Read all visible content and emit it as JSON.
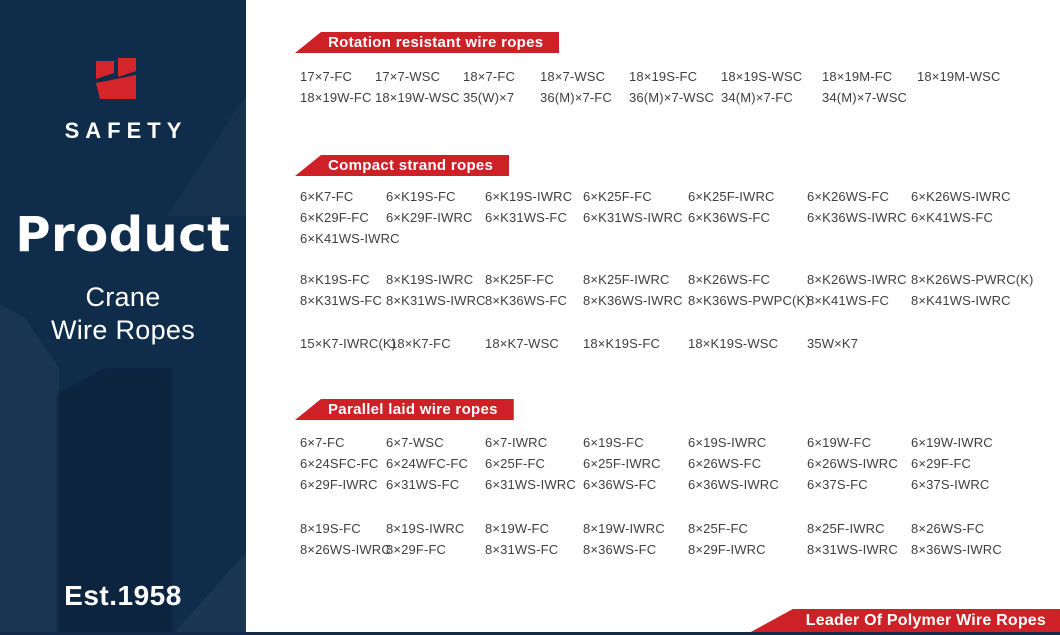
{
  "sidebar": {
    "brand": "SAFETY",
    "title": "Product",
    "subtitle_line1": "Crane",
    "subtitle_line2": "Wire Ropes",
    "established": "Est.1958",
    "logo": "safety-s-blocks-logo"
  },
  "colors": {
    "navy": "#0f2c4a",
    "red": "#ce2127",
    "code_text": "#3e3e3e"
  },
  "sections": [
    {
      "title": "Rotation resistant wire ropes",
      "blocks": [
        {
          "rows": [
            [
              "17×7-FC",
              "17×7-WSC",
              "18×7-FC",
              "18×7-WSC",
              "18×19S-FC",
              "18×19S-WSC",
              "18×19M-FC",
              "18×19M-WSC"
            ],
            [
              "18×19W-FC",
              "18×19W-WSC",
              "35(W)×7",
              "36(M)×7-FC",
              "36(M)×7-WSC",
              "34(M)×7-FC",
              "34(M)×7-WSC"
            ]
          ]
        }
      ]
    },
    {
      "title": "Compact strand ropes",
      "blocks": [
        {
          "rows": [
            [
              "6×K7-FC",
              "6×K19S-FC",
              "6×K19S-IWRC",
              "6×K25F-FC",
              "6×K25F-IWRC",
              "6×K26WS-FC",
              "6×K26WS-IWRC"
            ],
            [
              "6×K29F-FC",
              "6×K29F-IWRC",
              "6×K31WS-FC",
              "6×K31WS-IWRC",
              "6×K36WS-FC",
              "6×K36WS-IWRC",
              "6×K41WS-FC"
            ],
            [
              "6×K41WS-IWRC"
            ]
          ]
        },
        {
          "rows": [
            [
              "8×K19S-FC",
              "8×K19S-IWRC",
              "8×K25F-FC",
              "8×K25F-IWRC",
              "8×K26WS-FC",
              "8×K26WS-IWRC",
              "8×K26WS-PWRC(K)"
            ],
            [
              "8×K31WS-FC",
              "8×K31WS-IWRC",
              "8×K36WS-FC",
              "8×K36WS-IWRC",
              "8×K36WS-PWPC(K)",
              "8×K41WS-FC",
              "8×K41WS-IWRC"
            ]
          ]
        },
        {
          "rows": [
            [
              "15×K7-IWRC(K)",
              "18×K7-FC",
              "18×K7-WSC",
              "18×K19S-FC",
              "18×K19S-WSC",
              "35W×K7"
            ]
          ]
        }
      ]
    },
    {
      "title": "Parallel laid wire ropes",
      "blocks": [
        {
          "rows": [
            [
              "6×7-FC",
              "6×7-WSC",
              "6×7-IWRC",
              "6×19S-FC",
              "6×19S-IWRC",
              "6×19W-FC",
              "6×19W-IWRC"
            ],
            [
              "6×24SFC-FC",
              "6×24WFC-FC",
              "6×25F-FC",
              "6×25F-IWRC",
              "6×26WS-FC",
              "6×26WS-IWRC",
              "6×29F-FC"
            ],
            [
              "6×29F-IWRC",
              "6×31WS-FC",
              "6×31WS-IWRC",
              "6×36WS-FC",
              "6×36WS-IWRC",
              "6×37S-FC",
              "6×37S-IWRC"
            ]
          ]
        },
        {
          "rows": [
            [
              "8×19S-FC",
              "8×19S-IWRC",
              "8×19W-FC",
              "8×19W-IWRC",
              "8×25F-FC",
              "8×25F-IWRC",
              "8×26WS-FC"
            ],
            [
              "8×26WS-IWRC",
              "8×29F-FC",
              "8×31WS-FC",
              "8×36WS-FC",
              "8×29F-IWRC",
              "8×31WS-IWRC",
              "8×36WS-IWRC"
            ]
          ]
        }
      ]
    }
  ],
  "footer": {
    "banner": "Leader Of Polymer Wire Ropes"
  }
}
